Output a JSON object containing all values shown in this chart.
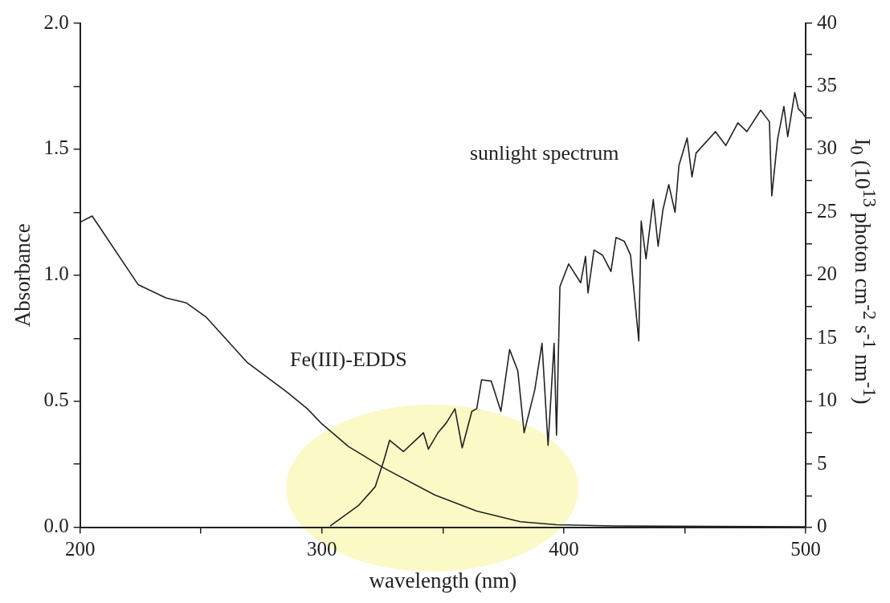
{
  "chart_data": {
    "type": "line",
    "xlabel": "wavelength (nm)",
    "ylabel": "Absorbance",
    "y2label": "I$_{0}$ (10$^{13}$ photon cm$^{-2}$ s$^{-1}$ nm$^{-1}$)",
    "xlim": [
      200,
      500
    ],
    "xticks": [
      200,
      {
        "value": 250,
        "label": null
      },
      300,
      {
        "value": 350,
        "label": null
      },
      400,
      {
        "value": 450,
        "label": null
      },
      500
    ],
    "ylim": [
      0,
      2
    ],
    "yticks": [
      {
        "value": 0,
        "label": "0.0"
      },
      {
        "value": 0.25,
        "label": null
      },
      {
        "value": 0.5,
        "label": "0.5"
      },
      {
        "value": 0.75,
        "label": null
      },
      {
        "value": 1,
        "label": "1.0"
      },
      {
        "value": 1.25,
        "label": null
      },
      {
        "value": 1.5,
        "label": "1.5"
      },
      {
        "value": 1.75,
        "label": null
      },
      {
        "value": 2,
        "label": "2.0"
      }
    ],
    "y2lim": [
      0,
      40
    ],
    "y2ticks": [
      0,
      {
        "value": 2.5,
        "label": null
      },
      5,
      {
        "value": 7.5,
        "label": null
      },
      10,
      {
        "value": 12.5,
        "label": null
      },
      15,
      {
        "value": 17.5,
        "label": null
      },
      20,
      {
        "value": 22.5,
        "label": null
      },
      25,
      {
        "value": 27.5,
        "label": null
      },
      30,
      {
        "value": 32.5,
        "label": null
      },
      35,
      {
        "value": 37.5,
        "label": null
      },
      40
    ],
    "grid": false,
    "legend": false,
    "marker": "none",
    "line_style": "solid",
    "series": [
      {
        "name": "Fe(III)-EDDS",
        "color": "#222222",
        "x": [
          200,
          205,
          224,
          235.5,
          244,
          252,
          269,
          286,
          294,
          300,
          311,
          325.6,
          346.7,
          364,
          382,
          397,
          420,
          460,
          500
        ],
        "values": [
          1.21,
          1.235,
          0.963,
          0.91,
          0.89,
          0.835,
          0.655,
          0.533,
          0.47,
          0.41,
          0.32,
          0.235,
          0.128,
          0.064,
          0.022,
          0.01,
          0.005,
          0.003,
          0.002
        ]
      },
      {
        "name": "sunlight spectrum",
        "color": "#222222",
        "axis": "y2",
        "x": [
          303.4,
          315,
          322,
          325.6,
          328,
          333.7,
          337,
          342,
          344,
          348,
          351.5,
          355,
          358,
          362,
          364,
          366,
          370,
          374,
          377.6,
          381,
          383.6,
          388,
          391,
          393.5,
          396,
          397,
          398.4,
          402,
          407,
          409,
          410,
          412.5,
          416,
          419.5,
          421.6,
          425,
          427.6,
          431,
          432,
          434,
          437,
          439,
          441,
          443.4,
          446,
          447.6,
          451,
          453,
          454.7,
          462.7,
          467,
          472,
          475.7,
          481.4,
          485,
          486,
          488.4,
          491,
          492.6,
          495.5,
          497,
          498.6,
          500
        ],
        "values": [
          0.1,
          1.7,
          3.2,
          5.3,
          6.9,
          6.0,
          6.6,
          7.5,
          6.2,
          7.5,
          8.3,
          9.4,
          6.3,
          9.2,
          9.4,
          11.7,
          11.6,
          9.2,
          14.1,
          12.4,
          7.5,
          10.9,
          14.6,
          6.5,
          14.6,
          7.3,
          19.1,
          20.9,
          19.4,
          21.5,
          18.6,
          22.0,
          21.6,
          20.3,
          23.0,
          22.7,
          21.6,
          14.8,
          24.3,
          21.3,
          26.0,
          22.3,
          25.2,
          27.2,
          25.0,
          28.7,
          30.9,
          27.8,
          29.7,
          31.4,
          30.3,
          32.1,
          31.4,
          33.1,
          32.2,
          26.3,
          30.8,
          33.4,
          31.0,
          34.5,
          33.2,
          32.9,
          32.5
        ]
      }
    ]
  }
}
